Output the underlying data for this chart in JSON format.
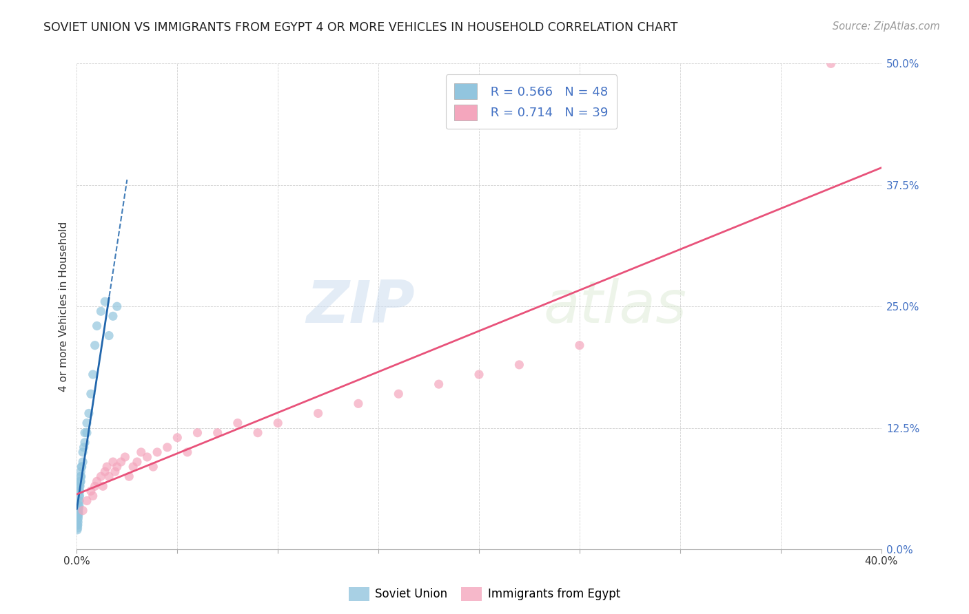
{
  "title": "SOVIET UNION VS IMMIGRANTS FROM EGYPT 4 OR MORE VEHICLES IN HOUSEHOLD CORRELATION CHART",
  "source": "Source: ZipAtlas.com",
  "ylabel": "4 or more Vehicles in Household",
  "xlim": [
    0.0,
    0.4
  ],
  "ylim": [
    0.0,
    0.5
  ],
  "xtick_positions": [
    0.0,
    0.05,
    0.1,
    0.15,
    0.2,
    0.25,
    0.3,
    0.35,
    0.4
  ],
  "xticklabels": [
    "0.0%",
    "",
    "",
    "",
    "",
    "",
    "",
    "",
    "40.0%"
  ],
  "ytick_positions": [
    0.0,
    0.125,
    0.25,
    0.375,
    0.5
  ],
  "yticklabels": [
    "0.0%",
    "12.5%",
    "25.0%",
    "37.5%",
    "50.0%"
  ],
  "legend_r1": "R = 0.566",
  "legend_n1": "N = 48",
  "legend_r2": "R = 0.714",
  "legend_n2": "N = 39",
  "color_blue": "#92c5de",
  "color_pink": "#f4a6bd",
  "color_blue_line": "#2166ac",
  "color_pink_line": "#e8527a",
  "watermark_zip": "ZIP",
  "watermark_atlas": "atlas",
  "background_color": "#ffffff",
  "grid_color": "#cccccc",
  "soviet_x": [
    0.0002,
    0.0003,
    0.0004,
    0.0004,
    0.0005,
    0.0005,
    0.0006,
    0.0006,
    0.0007,
    0.0007,
    0.0008,
    0.0008,
    0.0009,
    0.0009,
    0.001,
    0.001,
    0.0012,
    0.0012,
    0.0013,
    0.0013,
    0.0014,
    0.0015,
    0.0015,
    0.0016,
    0.0017,
    0.0018,
    0.002,
    0.002,
    0.0022,
    0.0023,
    0.0025,
    0.003,
    0.003,
    0.0035,
    0.004,
    0.004,
    0.005,
    0.005,
    0.006,
    0.007,
    0.008,
    0.009,
    0.01,
    0.012,
    0.014,
    0.016,
    0.018,
    0.02
  ],
  "soviet_y": [
    0.02,
    0.025,
    0.022,
    0.03,
    0.025,
    0.035,
    0.028,
    0.038,
    0.032,
    0.04,
    0.035,
    0.045,
    0.038,
    0.05,
    0.042,
    0.055,
    0.045,
    0.06,
    0.05,
    0.065,
    0.055,
    0.06,
    0.068,
    0.065,
    0.07,
    0.075,
    0.07,
    0.08,
    0.075,
    0.085,
    0.085,
    0.09,
    0.1,
    0.105,
    0.11,
    0.12,
    0.12,
    0.13,
    0.14,
    0.16,
    0.18,
    0.21,
    0.23,
    0.245,
    0.255,
    0.22,
    0.24,
    0.25
  ],
  "egypt_x": [
    0.003,
    0.005,
    0.007,
    0.008,
    0.009,
    0.01,
    0.012,
    0.013,
    0.014,
    0.015,
    0.016,
    0.018,
    0.019,
    0.02,
    0.022,
    0.024,
    0.026,
    0.028,
    0.03,
    0.032,
    0.035,
    0.038,
    0.04,
    0.045,
    0.05,
    0.055,
    0.06,
    0.07,
    0.08,
    0.09,
    0.1,
    0.12,
    0.14,
    0.16,
    0.18,
    0.2,
    0.22,
    0.25,
    0.375
  ],
  "egypt_y": [
    0.04,
    0.05,
    0.06,
    0.055,
    0.065,
    0.07,
    0.075,
    0.065,
    0.08,
    0.085,
    0.075,
    0.09,
    0.08,
    0.085,
    0.09,
    0.095,
    0.075,
    0.085,
    0.09,
    0.1,
    0.095,
    0.085,
    0.1,
    0.105,
    0.115,
    0.1,
    0.12,
    0.12,
    0.13,
    0.12,
    0.13,
    0.14,
    0.15,
    0.16,
    0.17,
    0.18,
    0.19,
    0.21,
    0.5
  ]
}
